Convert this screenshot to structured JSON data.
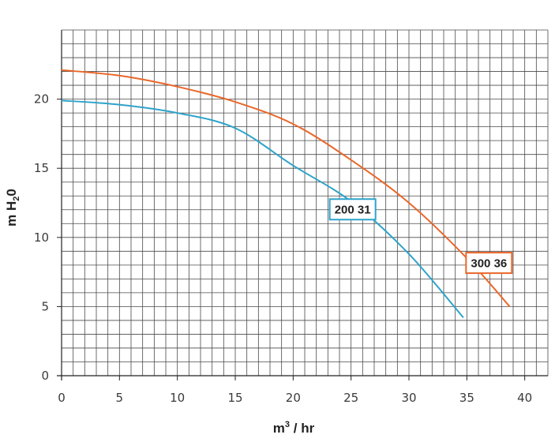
{
  "chart_data": {
    "type": "line",
    "title": "",
    "xlabel": {
      "base": "m",
      "sup": "3",
      "rest": " / hr"
    },
    "ylabel": {
      "base": "m H",
      "sub": "2",
      "rest": "0"
    },
    "xlim": [
      0,
      42
    ],
    "ylim": [
      0,
      25
    ],
    "xticks": [
      0,
      5,
      10,
      15,
      20,
      25,
      30,
      35,
      40
    ],
    "yticks": [
      0,
      5,
      10,
      15,
      20
    ],
    "grid": true,
    "series": [
      {
        "name": "200 31",
        "color": "#2ea3c9",
        "x": [
          0,
          5,
          10,
          15,
          20,
          25,
          30,
          34.7
        ],
        "y": [
          19.9,
          19.6,
          19.0,
          17.9,
          15.2,
          12.6,
          8.8,
          4.2
        ]
      },
      {
        "name": "300 36",
        "color": "#e9672a",
        "x": [
          0,
          5,
          10,
          15,
          20,
          25,
          30,
          35,
          38.7
        ],
        "y": [
          22.1,
          21.7,
          20.9,
          19.8,
          18.2,
          15.6,
          12.5,
          8.5,
          5.0
        ]
      }
    ]
  }
}
